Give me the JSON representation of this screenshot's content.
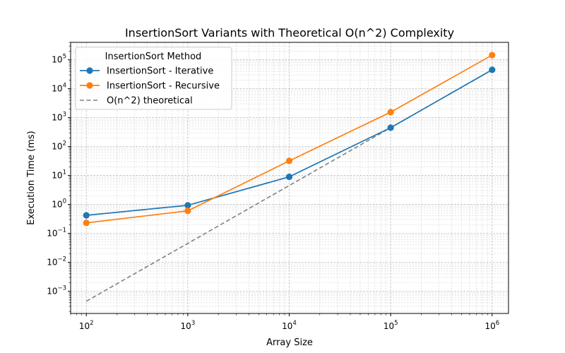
{
  "chart_data": {
    "type": "line",
    "title": "InsertionSort Variants with Theoretical O(n^2) Complexity",
    "xlabel": "Array Size",
    "ylabel": "Execution Time (ms)",
    "xscale": "log",
    "yscale": "log",
    "xlim": [
      70,
      1450000
    ],
    "ylim": [
      0.00017,
      400000
    ],
    "xticks": [
      100,
      1000,
      10000,
      100000,
      1000000
    ],
    "xtick_labels": [
      [
        "10",
        "2"
      ],
      [
        "10",
        "3"
      ],
      [
        "10",
        "4"
      ],
      [
        "10",
        "5"
      ],
      [
        "10",
        "6"
      ]
    ],
    "yticks": [
      0.001,
      0.01,
      0.1,
      1,
      10,
      100,
      1000,
      10000,
      100000
    ],
    "ytick_labels": [
      [
        "10",
        "−3"
      ],
      [
        "10",
        "−2"
      ],
      [
        "10",
        "−1"
      ],
      [
        "10",
        "0"
      ],
      [
        "10",
        "1"
      ],
      [
        "10",
        "2"
      ],
      [
        "10",
        "3"
      ],
      [
        "10",
        "4"
      ],
      [
        "10",
        "5"
      ]
    ],
    "grid": true,
    "legend_title": "InsertionSort Method",
    "legend_position": "top-left",
    "x": [
      100,
      1000,
      10000,
      100000,
      1000000
    ],
    "series": [
      {
        "name": "InsertionSort - Iterative",
        "values": [
          0.42,
          0.93,
          9.0,
          450,
          45000
        ],
        "color": "#1f77b4",
        "style": "solid",
        "marker": "circle"
      },
      {
        "name": "InsertionSort - Recursive",
        "values": [
          0.23,
          0.6,
          32,
          1550,
          145000
        ],
        "color": "#ff7f0e",
        "style": "solid",
        "marker": "circle"
      },
      {
        "name": "O(n^2) theoretical",
        "values": [
          0.00045,
          0.045,
          4.5,
          450,
          45000
        ],
        "color": "#808080",
        "style": "dashed",
        "marker": "none"
      }
    ]
  }
}
